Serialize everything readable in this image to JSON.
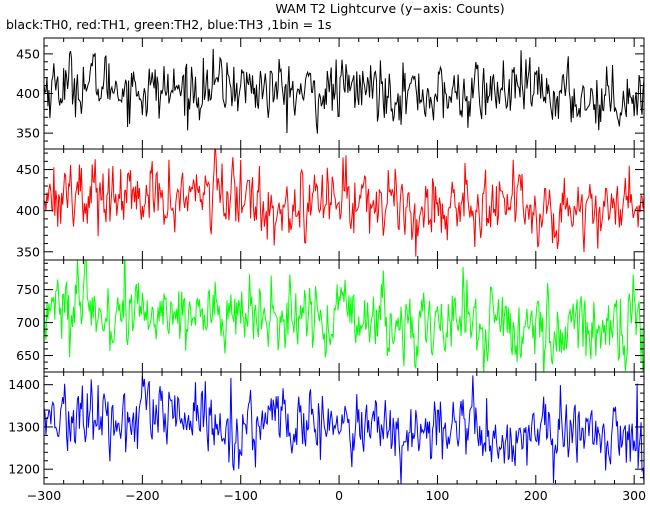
{
  "title": "WAM T2 Lightcurve (y−axis: Counts)",
  "subtitle": "black:TH0, red:TH1, green:TH2, blue:TH3 ,1bin = 1s",
  "chart_data": [
    {
      "type": "line",
      "series_name": "TH0",
      "color": "#000000",
      "xlim": [
        -300,
        310
      ],
      "ylim": [
        330,
        470
      ],
      "yticks": [
        350,
        400,
        450
      ],
      "mean_start": 410,
      "mean_end": 397,
      "noise": 18,
      "x_start": -300,
      "x_end": 310,
      "bin": 1
    },
    {
      "type": "line",
      "series_name": "TH1",
      "color": "#ff0000",
      "xlim": [
        -300,
        310
      ],
      "ylim": [
        340,
        475
      ],
      "yticks": [
        350,
        400,
        450
      ],
      "mean_start": 420,
      "mean_end": 402,
      "noise": 20,
      "x_start": -300,
      "x_end": 310,
      "bin": 1
    },
    {
      "type": "line",
      "series_name": "TH2",
      "color": "#00ff00",
      "xlim": [
        -300,
        310
      ],
      "ylim": [
        625,
        795
      ],
      "yticks": [
        650,
        700,
        750
      ],
      "mean_start": 720,
      "mean_end": 688,
      "noise": 26,
      "x_start": -300,
      "x_end": 310,
      "bin": 1
    },
    {
      "type": "line",
      "series_name": "TH3",
      "color": "#0000ff",
      "xlim": [
        -300,
        310
      ],
      "ylim": [
        1165,
        1430
      ],
      "yticks": [
        1200,
        1300,
        1400
      ],
      "mean_start": 1325,
      "mean_end": 1270,
      "noise": 38,
      "x_start": -300,
      "x_end": 310,
      "bin": 1
    }
  ],
  "xticks": [
    -300,
    -200,
    -100,
    0,
    100,
    200,
    300
  ]
}
